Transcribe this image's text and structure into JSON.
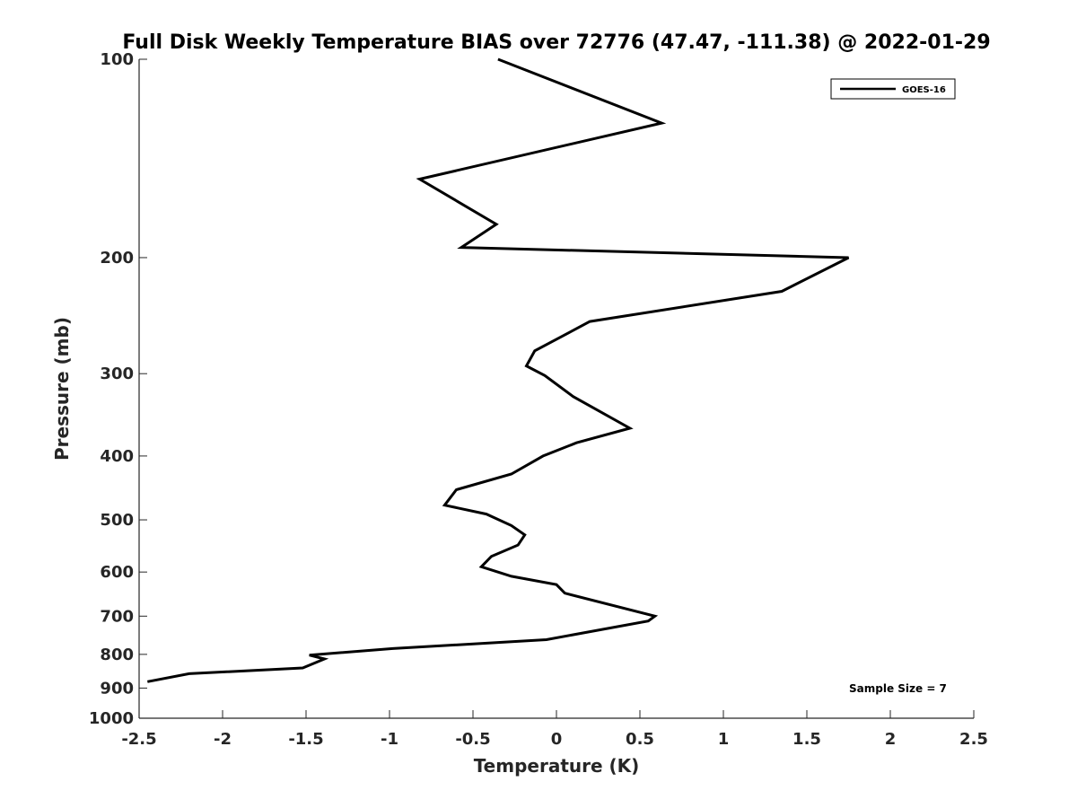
{
  "chart_data": {
    "type": "line",
    "title": "Full Disk Weekly Temperature BIAS over 72776 (47.47, -111.38) @ 2022-01-29",
    "xlabel": "Temperature (K)",
    "ylabel": "Pressure (mb)",
    "xlim": [
      -2.5,
      2.5
    ],
    "ylim": [
      100,
      1000
    ],
    "yscale": "log",
    "y_reversed": true,
    "xticks": [
      -2.5,
      -2,
      -1.5,
      -1,
      -0.5,
      0,
      0.5,
      1,
      1.5,
      2,
      2.5
    ],
    "xtick_labels": [
      "-2.5",
      "-2",
      "-1.5",
      "-1",
      "-0.5",
      "0",
      "0.5",
      "1",
      "1.5",
      "2",
      "2.5"
    ],
    "yticks": [
      100,
      200,
      300,
      400,
      500,
      600,
      700,
      800,
      900,
      1000
    ],
    "ytick_labels": [
      "100",
      "200",
      "300",
      "400",
      "500",
      "600",
      "700",
      "800",
      "900",
      "1000"
    ],
    "grid": false,
    "legend_position": "top-right",
    "series": [
      {
        "name": "GOES-16",
        "color": "#000000",
        "points": [
          [
            -0.35,
            100
          ],
          [
            0.63,
            125
          ],
          [
            -0.82,
            152
          ],
          [
            -0.36,
            178
          ],
          [
            -0.57,
            193
          ],
          [
            1.75,
            200
          ],
          [
            1.35,
            225
          ],
          [
            0.2,
            250
          ],
          [
            -0.13,
            277
          ],
          [
            -0.18,
            292
          ],
          [
            -0.07,
            302
          ],
          [
            0.1,
            325
          ],
          [
            0.44,
            363
          ],
          [
            0.12,
            382
          ],
          [
            -0.08,
            400
          ],
          [
            -0.27,
            426
          ],
          [
            -0.6,
            450
          ],
          [
            -0.67,
            475
          ],
          [
            -0.42,
            490
          ],
          [
            -0.27,
            510
          ],
          [
            -0.19,
            527
          ],
          [
            -0.23,
            546
          ],
          [
            -0.39,
            568
          ],
          [
            -0.45,
            589
          ],
          [
            -0.27,
            609
          ],
          [
            0,
            627
          ],
          [
            0.05,
            646
          ],
          [
            0.59,
            700
          ],
          [
            0.55,
            712
          ],
          [
            -0.06,
            760
          ],
          [
            -0.98,
            784
          ],
          [
            -1.48,
            802
          ],
          [
            -1.39,
            813
          ],
          [
            -1.52,
            839
          ],
          [
            -2.2,
            856
          ],
          [
            -2.45,
            880
          ]
        ]
      }
    ],
    "annotations": [
      {
        "text": "Sample Size = 7"
      }
    ]
  }
}
